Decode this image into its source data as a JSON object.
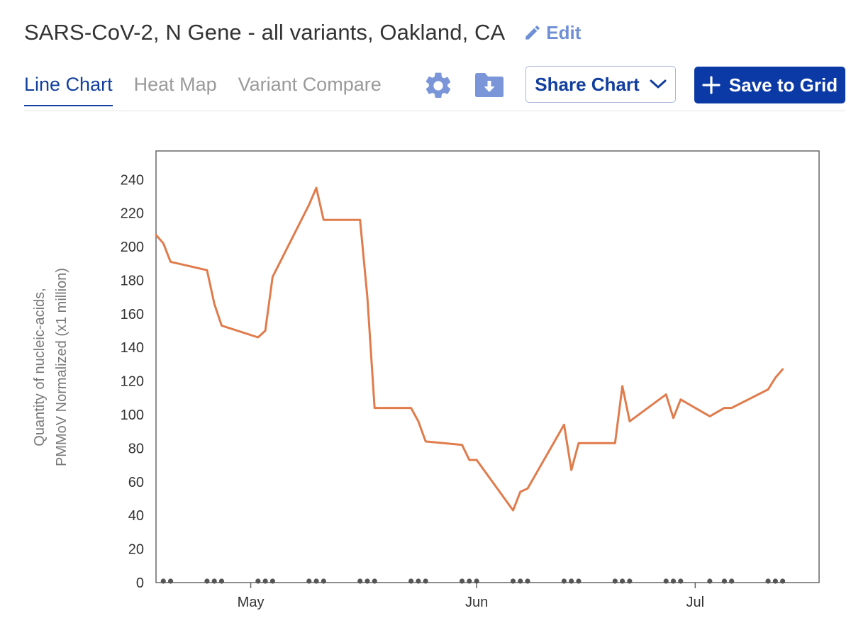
{
  "header": {
    "title": "SARS-CoV-2, N Gene - all variants, Oakland, CA",
    "edit_label": "Edit"
  },
  "tabs": [
    {
      "label": "Line Chart",
      "active": true
    },
    {
      "label": "Heat Map",
      "active": false
    },
    {
      "label": "Variant Compare",
      "active": false
    }
  ],
  "toolbar": {
    "settings_icon": "gear-icon",
    "download_icon": "folder-download-icon",
    "share_label": "Share Chart",
    "save_label": "Save to Grid"
  },
  "colors": {
    "accent": "#0b3aa6",
    "series": "#e07b4c",
    "marker": "#555555"
  },
  "chart_data": {
    "type": "line",
    "title": "",
    "xlabel": "",
    "ylabel": "Quantity of nucleic-acids, PMMoV Normalized (x1 million)",
    "ylabel_lines": [
      "Quantity of nucleic-acids,",
      "PMMoV Normalized (x1 million)"
    ],
    "ylim": [
      0,
      257
    ],
    "yticks": [
      0,
      20,
      40,
      60,
      80,
      100,
      120,
      140,
      160,
      180,
      200,
      220,
      240
    ],
    "xlim": [
      "2023-04-18",
      "2023-07-18"
    ],
    "xticks": [
      {
        "label": "May",
        "date": "2023-05-01"
      },
      {
        "label": "Jun",
        "date": "2023-06-01"
      },
      {
        "label": "Jul",
        "date": "2023-07-01"
      }
    ],
    "grid": false,
    "series": [
      {
        "points": [
          {
            "x": "2023-04-18",
            "y": 207
          },
          {
            "x": "2023-04-19",
            "y": 202
          },
          {
            "x": "2023-04-20",
            "y": 191
          },
          {
            "x": "2023-04-25",
            "y": 186
          },
          {
            "x": "2023-04-26",
            "y": 166
          },
          {
            "x": "2023-04-27",
            "y": 153
          },
          {
            "x": "2023-05-02",
            "y": 146
          },
          {
            "x": "2023-05-03",
            "y": 150
          },
          {
            "x": "2023-05-04",
            "y": 182
          },
          {
            "x": "2023-05-09",
            "y": 225
          },
          {
            "x": "2023-05-10",
            "y": 235
          },
          {
            "x": "2023-05-11",
            "y": 216
          },
          {
            "x": "2023-05-16",
            "y": 216
          },
          {
            "x": "2023-05-17",
            "y": 170
          },
          {
            "x": "2023-05-18",
            "y": 104
          },
          {
            "x": "2023-05-23",
            "y": 104
          },
          {
            "x": "2023-05-24",
            "y": 96
          },
          {
            "x": "2023-05-25",
            "y": 84
          },
          {
            "x": "2023-05-30",
            "y": 82
          },
          {
            "x": "2023-05-31",
            "y": 73
          },
          {
            "x": "2023-06-01",
            "y": 73
          },
          {
            "x": "2023-06-06",
            "y": 43
          },
          {
            "x": "2023-06-07",
            "y": 54
          },
          {
            "x": "2023-06-08",
            "y": 56
          },
          {
            "x": "2023-06-13",
            "y": 94
          },
          {
            "x": "2023-06-14",
            "y": 67
          },
          {
            "x": "2023-06-15",
            "y": 83
          },
          {
            "x": "2023-06-20",
            "y": 83
          },
          {
            "x": "2023-06-21",
            "y": 117
          },
          {
            "x": "2023-06-22",
            "y": 96
          },
          {
            "x": "2023-06-27",
            "y": 112
          },
          {
            "x": "2023-06-28",
            "y": 98
          },
          {
            "x": "2023-06-29",
            "y": 109
          },
          {
            "x": "2023-07-03",
            "y": 99
          },
          {
            "x": "2023-07-05",
            "y": 104
          },
          {
            "x": "2023-07-06",
            "y": 104
          },
          {
            "x": "2023-07-11",
            "y": 115
          },
          {
            "x": "2023-07-12",
            "y": 122
          },
          {
            "x": "2023-07-13",
            "y": 127
          }
        ]
      }
    ],
    "sample_markers": [
      "2023-04-19",
      "2023-04-20",
      "2023-04-25",
      "2023-04-26",
      "2023-04-27",
      "2023-05-02",
      "2023-05-03",
      "2023-05-04",
      "2023-05-09",
      "2023-05-10",
      "2023-05-11",
      "2023-05-16",
      "2023-05-17",
      "2023-05-18",
      "2023-05-23",
      "2023-05-24",
      "2023-05-25",
      "2023-05-30",
      "2023-05-31",
      "2023-06-01",
      "2023-06-06",
      "2023-06-07",
      "2023-06-08",
      "2023-06-13",
      "2023-06-14",
      "2023-06-15",
      "2023-06-20",
      "2023-06-21",
      "2023-06-22",
      "2023-06-27",
      "2023-06-28",
      "2023-06-29",
      "2023-07-03",
      "2023-07-05",
      "2023-07-06",
      "2023-07-11",
      "2023-07-12",
      "2023-07-13"
    ]
  }
}
